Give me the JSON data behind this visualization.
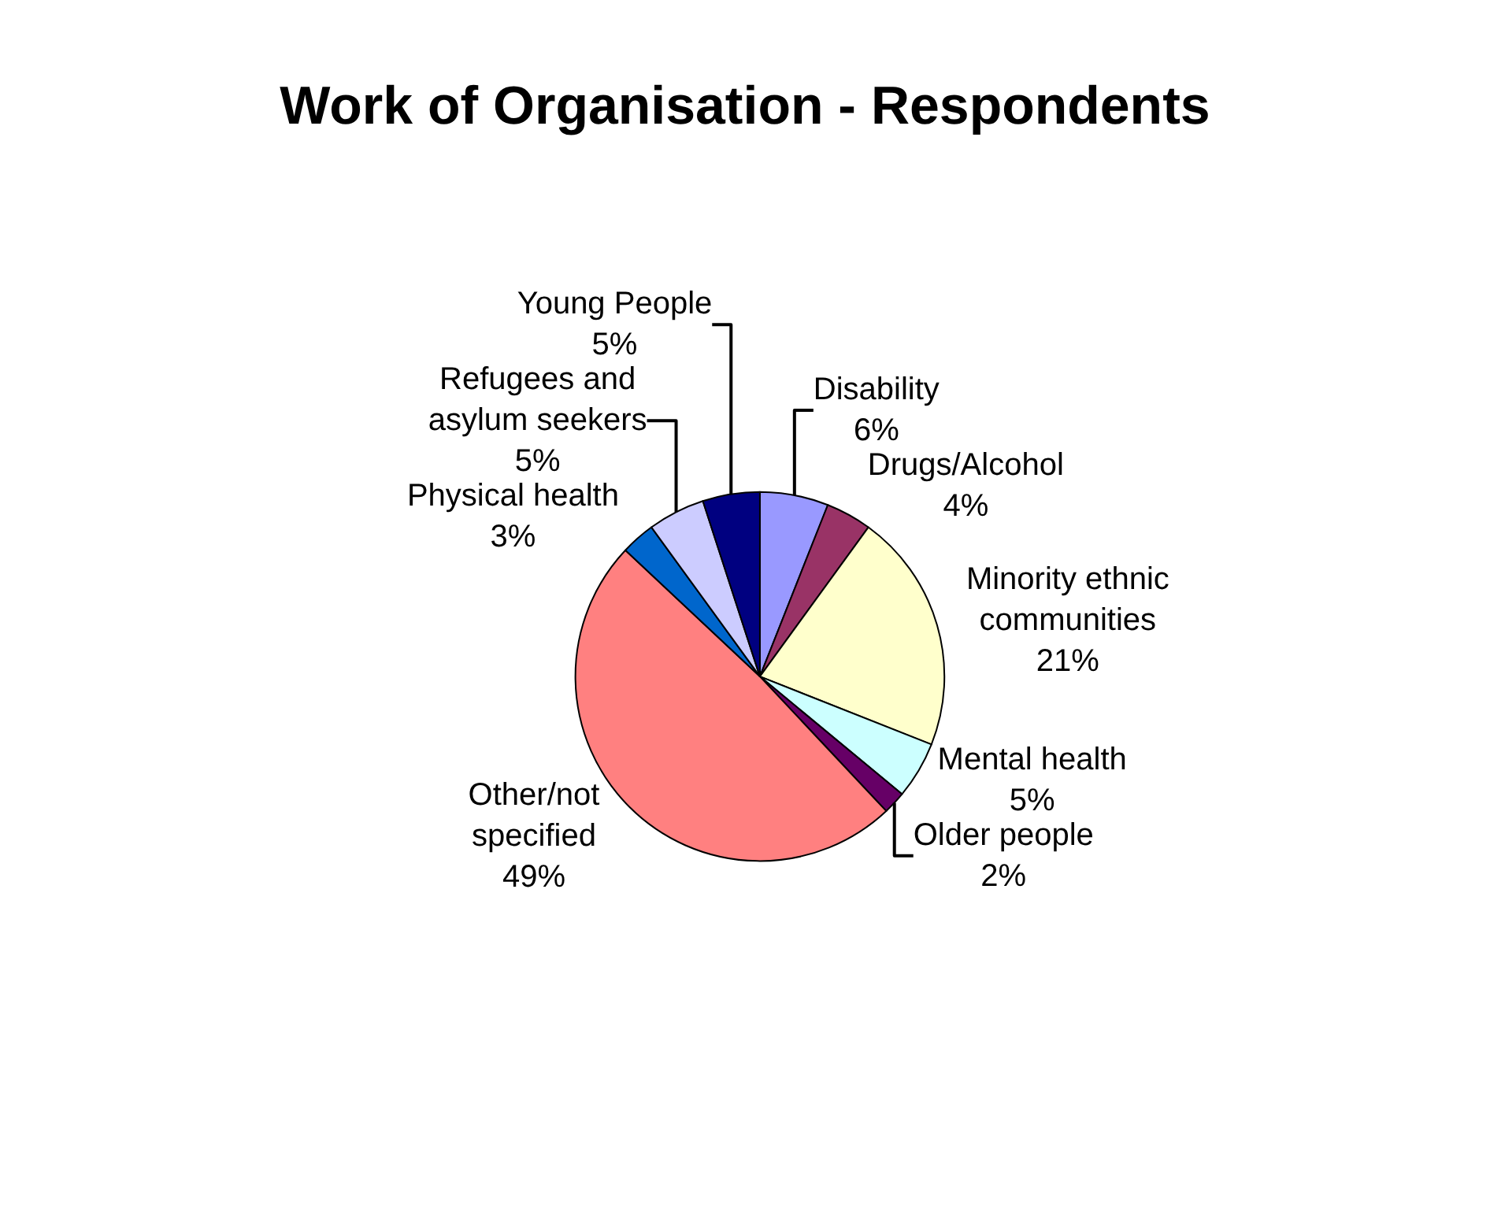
{
  "chart_data": {
    "type": "pie",
    "title": "Work of Organisation - Respondents",
    "categories": [
      "Disability",
      "Drugs/Alcohol",
      "Minority ethnic communities",
      "Mental health",
      "Older people",
      "Other/not specified",
      "Physical health",
      "Refugees and asylum seekers",
      "Young People"
    ],
    "values": [
      6,
      4,
      21,
      5,
      2,
      49,
      3,
      5,
      5
    ],
    "value_labels": [
      "6%",
      "4%",
      "21%",
      "5%",
      "2%",
      "49%",
      "3%",
      "5%",
      "5%"
    ],
    "colors": [
      "#9999ff",
      "#993366",
      "#ffffcc",
      "#ccffff",
      "#660066",
      "#ff8080",
      "#0066cc",
      "#ccccff",
      "#000080"
    ],
    "legend": false
  }
}
